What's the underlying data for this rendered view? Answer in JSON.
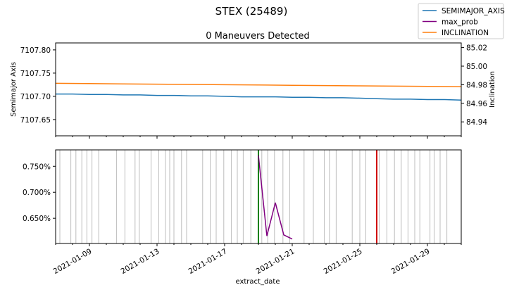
{
  "figure_title": "STEX (25489)",
  "legend": {
    "location": "top-right",
    "entries": [
      {
        "label": "SEMIMAJOR_AXIS",
        "color": "#1f77b4"
      },
      {
        "label": "max_prob",
        "color": "#800080"
      },
      {
        "label": "INCLINATION",
        "color": "#ff7f0e"
      }
    ]
  },
  "chart_data": [
    {
      "type": "line",
      "title": "0 Maneuvers Detected",
      "xlabel": "",
      "ylabel": "Semimajor Axis",
      "y2label": "Inclination",
      "xlim": [
        "2021-01-07",
        "2021-01-31"
      ],
      "ylim": [
        7107.615,
        7107.815
      ],
      "y2lim": [
        84.925,
        85.025
      ],
      "yticks": [
        "7107.65",
        "7107.70",
        "7107.75",
        "7107.80"
      ],
      "y2ticks": [
        "84.94",
        "84.96",
        "84.98",
        "85.00",
        "85.02"
      ],
      "grid": false,
      "series": [
        {
          "name": "SEMIMAJOR_AXIS",
          "axis": "left",
          "color": "#1f77b4",
          "x": [
            "2021-01-07",
            "2021-01-08",
            "2021-01-09",
            "2021-01-10",
            "2021-01-11",
            "2021-01-12",
            "2021-01-13",
            "2021-01-14",
            "2021-01-15",
            "2021-01-16",
            "2021-01-17",
            "2021-01-18",
            "2021-01-19",
            "2021-01-20",
            "2021-01-21",
            "2021-01-22",
            "2021-01-23",
            "2021-01-24",
            "2021-01-25",
            "2021-01-26",
            "2021-01-27",
            "2021-01-28",
            "2021-01-29",
            "2021-01-30",
            "2021-01-31"
          ],
          "values": [
            7107.705,
            7107.705,
            7107.704,
            7107.704,
            7107.703,
            7107.703,
            7107.702,
            7107.702,
            7107.701,
            7107.701,
            7107.7,
            7107.699,
            7107.699,
            7107.699,
            7107.698,
            7107.698,
            7107.697,
            7107.697,
            7107.696,
            7107.695,
            7107.694,
            7107.694,
            7107.693,
            7107.693,
            7107.692
          ]
        },
        {
          "name": "INCLINATION",
          "axis": "right",
          "color": "#ff7f0e",
          "x": [
            "2021-01-07",
            "2021-01-09",
            "2021-01-11",
            "2021-01-13",
            "2021-01-15",
            "2021-01-17",
            "2021-01-19",
            "2021-01-21",
            "2021-01-23",
            "2021-01-25",
            "2021-01-27",
            "2021-01-29",
            "2021-01-31"
          ],
          "values": [
            84.9815,
            84.9812,
            84.9809,
            84.9806,
            84.9803,
            84.98,
            84.9797,
            84.9794,
            84.9791,
            84.9788,
            84.9785,
            84.9782,
            84.9779
          ]
        }
      ]
    },
    {
      "type": "line",
      "title": "",
      "xlabel": "extract_date",
      "ylabel": "",
      "xlim": [
        "2021-01-07",
        "2021-01-31"
      ],
      "ylim": [
        0.6015,
        0.7815
      ],
      "yticks": [
        "0.650%",
        "0.700%",
        "0.750%"
      ],
      "xticks": [
        "2021-01-09",
        "2021-01-13",
        "2021-01-17",
        "2021-01-21",
        "2021-01-25",
        "2021-01-29"
      ],
      "grid": false,
      "series": [
        {
          "name": "max_prob",
          "color": "#800080",
          "x": [
            "2021-01-19",
            "2021-01-19.5",
            "2021-01-20",
            "2021-01-20.5",
            "2021-01-21"
          ],
          "values": [
            0.771,
            0.616,
            0.68,
            0.618,
            0.61
          ]
        }
      ],
      "observation_date_lines": [
        "2021-01-07.25",
        "2021-01-07.9",
        "2021-01-08.2",
        "2021-01-08.55",
        "2021-01-08.85",
        "2021-01-09.15",
        "2021-01-09.55",
        "2021-01-10.6",
        "2021-01-11.1",
        "2021-01-11.7",
        "2021-01-11.95",
        "2021-01-12.65",
        "2021-01-13.1",
        "2021-01-13.5",
        "2021-01-13.75",
        "2021-01-14.0",
        "2021-01-14.45",
        "2021-01-14.75",
        "2021-01-15.7",
        "2021-01-16.15",
        "2021-01-16.5",
        "2021-01-16.95",
        "2021-01-17.4",
        "2021-01-17.75",
        "2021-01-18.1",
        "2021-01-18.55",
        "2021-01-19.2",
        "2021-01-19.55",
        "2021-01-19.95",
        "2021-01-20.45",
        "2021-01-20.85",
        "2021-01-21.7",
        "2021-01-22.25",
        "2021-01-22.9",
        "2021-01-23.2",
        "2021-01-23.6",
        "2021-01-24.55",
        "2021-01-25.0",
        "2021-01-25.35",
        "2021-01-26.15",
        "2021-01-26.6",
        "2021-01-27.05",
        "2021-01-27.45",
        "2021-01-27.85",
        "2021-01-28.25",
        "2021-01-28.55",
        "2021-01-29.15",
        "2021-01-29.4",
        "2021-01-29.75",
        "2021-01-30.15"
      ],
      "marker_lines": [
        {
          "x": "2021-01-19",
          "color": "#008000"
        },
        {
          "x": "2021-01-26",
          "color": "#d00000"
        }
      ]
    }
  ]
}
